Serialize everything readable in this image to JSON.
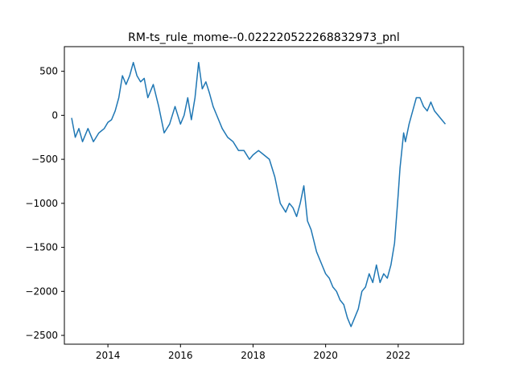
{
  "chart_data": {
    "type": "line",
    "title": "RM-ts_rule_mome--0.022220522268832973_pnl",
    "xlabel": "",
    "ylabel": "",
    "xlim": [
      2012.8,
      2023.8
    ],
    "ylim": [
      -2600,
      780
    ],
    "grid": false,
    "legend": "none",
    "x_ticks": [
      {
        "value": 2014,
        "label": "2014"
      },
      {
        "value": 2016,
        "label": "2016"
      },
      {
        "value": 2018,
        "label": "2018"
      },
      {
        "value": 2020,
        "label": "2020"
      },
      {
        "value": 2022,
        "label": "2022"
      }
    ],
    "y_ticks": [
      {
        "value": 500,
        "label": "500"
      },
      {
        "value": 0,
        "label": "0"
      },
      {
        "value": -500,
        "label": "−500"
      },
      {
        "value": -1000,
        "label": "−1000"
      },
      {
        "value": -1500,
        "label": "−1500"
      },
      {
        "value": -2000,
        "label": "−2000"
      },
      {
        "value": -2500,
        "label": "−2500"
      }
    ],
    "series": [
      {
        "color": "#1f77b4",
        "x": [
          2013.0,
          2013.1,
          2013.2,
          2013.3,
          2013.45,
          2013.6,
          2013.75,
          2013.9,
          2014.0,
          2014.1,
          2014.2,
          2014.3,
          2014.4,
          2014.5,
          2014.6,
          2014.7,
          2014.8,
          2014.9,
          2015.0,
          2015.1,
          2015.25,
          2015.4,
          2015.55,
          2015.7,
          2015.85,
          2016.0,
          2016.1,
          2016.2,
          2016.3,
          2016.4,
          2016.5,
          2016.6,
          2016.7,
          2016.8,
          2016.9,
          2017.0,
          2017.15,
          2017.3,
          2017.45,
          2017.6,
          2017.75,
          2017.9,
          2018.0,
          2018.15,
          2018.3,
          2018.45,
          2018.6,
          2018.75,
          2018.9,
          2019.0,
          2019.1,
          2019.2,
          2019.3,
          2019.4,
          2019.5,
          2019.6,
          2019.75,
          2019.9,
          2020.0,
          2020.1,
          2020.2,
          2020.3,
          2020.4,
          2020.5,
          2020.6,
          2020.7,
          2020.8,
          2020.9,
          2021.0,
          2021.1,
          2021.2,
          2021.3,
          2021.4,
          2021.5,
          2021.6,
          2021.7,
          2021.8,
          2021.9,
          2022.0,
          2022.05,
          2022.1,
          2022.15,
          2022.2,
          2022.3,
          2022.4,
          2022.5,
          2022.6,
          2022.7,
          2022.8,
          2022.9,
          2023.0,
          2023.1,
          2023.2,
          2023.3
        ],
        "y": [
          -30,
          -250,
          -150,
          -300,
          -150,
          -300,
          -200,
          -150,
          -80,
          -50,
          50,
          200,
          450,
          350,
          450,
          600,
          450,
          380,
          420,
          200,
          350,
          100,
          -200,
          -100,
          100,
          -100,
          0,
          200,
          -50,
          200,
          600,
          300,
          380,
          250,
          100,
          0,
          -150,
          -250,
          -300,
          -400,
          -400,
          -500,
          -450,
          -400,
          -450,
          -500,
          -700,
          -1000,
          -1100,
          -1000,
          -1050,
          -1150,
          -1000,
          -800,
          -1200,
          -1300,
          -1550,
          -1700,
          -1800,
          -1850,
          -1950,
          -2000,
          -2100,
          -2150,
          -2300,
          -2400,
          -2300,
          -2200,
          -2000,
          -1950,
          -1800,
          -1900,
          -1700,
          -1900,
          -1800,
          -1850,
          -1700,
          -1450,
          -900,
          -600,
          -400,
          -200,
          -300,
          -100,
          50,
          200,
          200,
          100,
          50,
          150,
          50,
          0,
          -50,
          -100
        ]
      }
    ]
  }
}
